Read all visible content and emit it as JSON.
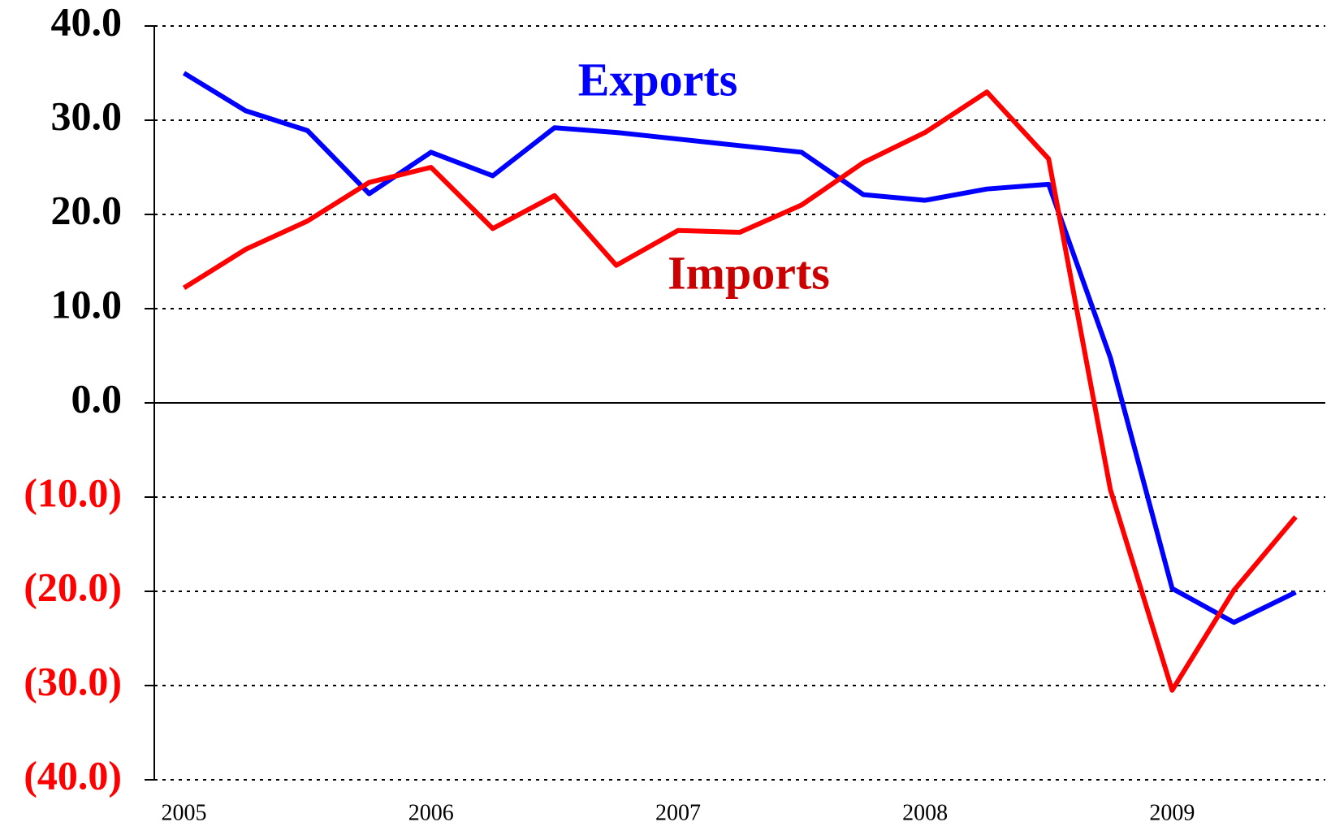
{
  "chart_data": {
    "type": "line",
    "x": [
      2005,
      2005.25,
      2005.5,
      2005.75,
      2006,
      2006.25,
      2006.5,
      2006.75,
      2007,
      2007.25,
      2007.5,
      2007.75,
      2008,
      2008.25,
      2008.5,
      2008.75,
      2009,
      2009.25,
      2009.5
    ],
    "series": [
      {
        "name": "Exports",
        "color": "#0000ff",
        "values": [
          35.0,
          31.0,
          28.9,
          22.2,
          26.6,
          24.1,
          29.2,
          28.7,
          28.0,
          27.3,
          26.6,
          22.1,
          21.5,
          22.7,
          23.2,
          4.8,
          -19.7,
          -23.3,
          -20.1
        ]
      },
      {
        "name": "Imports",
        "color": "#ff0000",
        "values": [
          12.2,
          16.3,
          19.3,
          23.4,
          25.0,
          18.5,
          22.0,
          14.6,
          18.3,
          18.1,
          21.0,
          25.5,
          28.7,
          33.0,
          25.9,
          -9.2,
          -30.5,
          -19.9,
          -12.1
        ]
      }
    ],
    "annotations": [
      {
        "text": "Exports",
        "color": "#0000ff"
      },
      {
        "text": "Imports",
        "color": "#cc0000"
      }
    ],
    "xlim": [
      2004.88,
      2009.62
    ],
    "xticks": [
      2005,
      2006,
      2007,
      2008,
      2009
    ],
    "ylim": [
      -40,
      40
    ],
    "yticks": [
      {
        "value": -40,
        "label": "(40.0)"
      },
      {
        "value": -30,
        "label": "(30.0)"
      },
      {
        "value": -20,
        "label": "(20.0)"
      },
      {
        "value": -10,
        "label": "(10.0)"
      },
      {
        "value": 0,
        "label": "0.0"
      },
      {
        "value": 10,
        "label": "10.0"
      },
      {
        "value": 20,
        "label": "20.0"
      },
      {
        "value": 30,
        "label": "30.0"
      },
      {
        "value": 40,
        "label": "40.0"
      }
    ],
    "negative_tick_color": "#ff0000",
    "grid": true
  }
}
